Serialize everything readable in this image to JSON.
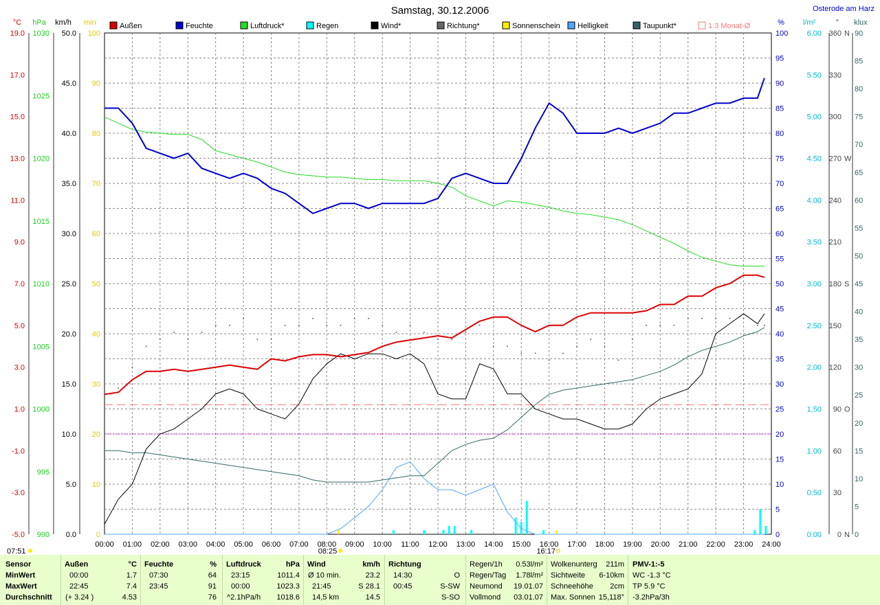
{
  "title": "Samstag, 30.12.2006",
  "location": "Osterode am Harz",
  "colors": {
    "aussen": "#dd0000",
    "feuchte": "#0000cc",
    "luftdruck": "#22dd22",
    "regen": "#00ffff",
    "wind": "#000000",
    "richtung": "#666666",
    "sonnenschein": "#ffee00",
    "helligkeit": "#4ea6ff",
    "taupunkt": "#336666",
    "monat": "#ff7777"
  },
  "legend": [
    "Außen",
    "Feuchte",
    "Luftdruck*",
    "Regen",
    "Wind*",
    "Richtung*",
    "Sonnenschein",
    "Helligkeit",
    "Taupunkt*",
    "1.3 Monat-Ø"
  ],
  "axis_units": {
    "c": "°C",
    "hpa": "hPa",
    "kmh": "km/h",
    "min": "min",
    "pct": "%",
    "lm2": "l/m²",
    "deg": "°",
    "klux": "klux"
  },
  "x_ticks": [
    "00:00",
    "01:00",
    "02:00",
    "03:00",
    "04:00",
    "05:00",
    "06:00",
    "07:00",
    "08:00",
    "09:00",
    "10:00",
    "11:00",
    "12:00",
    "13:00",
    "14:00",
    "15:00",
    "16:00",
    "17:00",
    "18:00",
    "19:00",
    "20:00",
    "21:00",
    "22:00",
    "23:00",
    "24:00"
  ],
  "axes": {
    "temp": [
      "-5.0",
      "-3.0",
      "-1.0",
      "1.0",
      "3.0",
      "5.0",
      "7.0",
      "9.0",
      "11.0",
      "13.0",
      "15.0",
      "17.0",
      "19.0"
    ],
    "hpa": [
      "990",
      "995",
      "1000",
      "1005",
      "1010",
      "1015",
      "1020",
      "1025",
      "1030"
    ],
    "kmh": [
      "0.0",
      "5.0",
      "10.0",
      "15.0",
      "20.0",
      "25.0",
      "30.0",
      "35.0",
      "40.0",
      "45.0",
      "50.0"
    ],
    "min": [
      "0",
      "10",
      "20",
      "30",
      "40",
      "50",
      "60",
      "70",
      "80",
      "90",
      "100"
    ],
    "pct": [
      "0",
      "5",
      "10",
      "15",
      "20",
      "25",
      "30",
      "35",
      "40",
      "45",
      "50",
      "55",
      "60",
      "65",
      "70",
      "75",
      "80",
      "85",
      "90",
      "95",
      "100"
    ],
    "lm2": [
      "0.00",
      "0.50",
      "1.00",
      "1.50",
      "2.00",
      "2.50",
      "3.00",
      "3.50",
      "4.00",
      "4.50",
      "5.00",
      "5.50",
      "6.00"
    ],
    "deg": [
      "0",
      "30",
      "60",
      "90",
      "120",
      "150",
      "180",
      "210",
      "240",
      "270",
      "300",
      "330",
      "360"
    ],
    "dir": [
      "N",
      "O",
      "S",
      "W",
      "N"
    ],
    "klux": [
      "0",
      "5",
      "10",
      "15",
      "20",
      "25",
      "30",
      "35",
      "40",
      "45",
      "50",
      "55",
      "60",
      "65",
      "70",
      "75",
      "80",
      "85",
      "90"
    ]
  },
  "sun": {
    "sunrise": "07:51",
    "noon": "08:25",
    "sunset": "16:17"
  },
  "chart_data": {
    "type": "line",
    "title": "Samstag, 30.12.2006",
    "x_hours": [
      0,
      0.5,
      1,
      1.5,
      2,
      2.5,
      3,
      3.5,
      4,
      4.5,
      5,
      5.5,
      6,
      6.5,
      7,
      7.5,
      8,
      8.5,
      9,
      9.5,
      10,
      10.5,
      11,
      11.5,
      12,
      12.5,
      13,
      13.5,
      14,
      14.5,
      15,
      15.5,
      16,
      16.5,
      17,
      17.5,
      18,
      18.5,
      19,
      19.5,
      20,
      20.5,
      21,
      21.5,
      22,
      22.5,
      23,
      23.5,
      23.75
    ],
    "series": [
      {
        "name": "Außen",
        "unit": "°C",
        "values": [
          1.7,
          1.8,
          2.4,
          2.8,
          2.8,
          2.9,
          2.8,
          2.9,
          3.0,
          3.1,
          3.0,
          2.9,
          3.4,
          3.3,
          3.5,
          3.6,
          3.6,
          3.5,
          3.6,
          3.7,
          4.0,
          4.2,
          4.3,
          4.4,
          4.5,
          4.4,
          4.8,
          5.2,
          5.4,
          5.4,
          5.0,
          4.7,
          5.0,
          5.0,
          5.4,
          5.6,
          5.6,
          5.6,
          5.6,
          5.7,
          6.0,
          6.0,
          6.4,
          6.4,
          6.8,
          7.0,
          7.4,
          7.4,
          7.3
        ]
      },
      {
        "name": "Feuchte",
        "unit": "%",
        "values": [
          85,
          85,
          82,
          77,
          76,
          75,
          76,
          73,
          72,
          71,
          72,
          71,
          69,
          68,
          66,
          64,
          65,
          66,
          66,
          65,
          66,
          66,
          66,
          66,
          67,
          71,
          72,
          71,
          70,
          70,
          75,
          81,
          86,
          84,
          80,
          80,
          80,
          81,
          80,
          81,
          82,
          84,
          84,
          85,
          86,
          86,
          87,
          87,
          91
        ]
      },
      {
        "name": "Luftdruck*",
        "unit": "hPa",
        "values": [
          1023.3,
          1022.8,
          1022.3,
          1022.1,
          1022.0,
          1021.9,
          1021.9,
          1021.5,
          1020.6,
          1020.3,
          1020.0,
          1019.7,
          1019.3,
          1018.9,
          1018.7,
          1018.6,
          1018.5,
          1018.5,
          1018.4,
          1018.3,
          1018.3,
          1018.2,
          1018.2,
          1018.2,
          1018.0,
          1017.7,
          1017.0,
          1016.6,
          1016.2,
          1016.6,
          1016.5,
          1016.3,
          1016.1,
          1015.8,
          1015.6,
          1015.5,
          1015.3,
          1015.1,
          1014.7,
          1014.2,
          1013.7,
          1013.2,
          1012.6,
          1012.1,
          1011.8,
          1011.5,
          1011.4,
          1011.4,
          1011.4
        ]
      },
      {
        "name": "Wind*",
        "unit": "km/h",
        "values": [
          1.0,
          3.5,
          5.0,
          8.5,
          10.0,
          10.5,
          11.5,
          12.5,
          14.0,
          14.5,
          14.0,
          12.5,
          12.0,
          11.5,
          13.0,
          15.5,
          17.0,
          18.0,
          17.5,
          18.0,
          18.0,
          17.5,
          18.0,
          17.0,
          14.0,
          13.5,
          13.5,
          17.0,
          16.5,
          14.0,
          14.0,
          12.5,
          12.0,
          11.5,
          11.5,
          11.0,
          10.5,
          10.5,
          11.0,
          12.5,
          13.5,
          14.0,
          14.5,
          16.0,
          20.0,
          21.0,
          22.0,
          21.0,
          22.0
        ]
      },
      {
        "name": "Taupunkt*",
        "unit": "°C",
        "values": [
          -1.0,
          -1.0,
          -1.1,
          -1.1,
          -1.2,
          -1.3,
          -1.4,
          -1.5,
          -1.6,
          -1.7,
          -1.8,
          -1.9,
          -2.0,
          -2.1,
          -2.2,
          -2.4,
          -2.5,
          -2.5,
          -2.5,
          -2.5,
          -2.4,
          -2.3,
          -2.2,
          -2.2,
          -1.6,
          -1.0,
          -0.7,
          -0.5,
          -0.4,
          0.0,
          0.6,
          1.2,
          1.7,
          1.9,
          2.0,
          2.1,
          2.2,
          2.3,
          2.4,
          2.6,
          2.8,
          3.1,
          3.5,
          3.8,
          4.0,
          4.2,
          4.5,
          4.7,
          4.9
        ]
      },
      {
        "name": "Helligkeit",
        "unit": "klux",
        "values": [
          0,
          0,
          0,
          0,
          0,
          0,
          0,
          0,
          0,
          0,
          0,
          0,
          0,
          0,
          0,
          0,
          0,
          1,
          3,
          5,
          8,
          12,
          13,
          10,
          8,
          8,
          7,
          8,
          9,
          4,
          1,
          0,
          0,
          0,
          0,
          0,
          0,
          0,
          0,
          0,
          0,
          0,
          0,
          0,
          0,
          0,
          0,
          0,
          0
        ]
      },
      {
        "name": "Richtung*",
        "unit": "°",
        "values": [
          60,
          105,
          120,
          135,
          140,
          145,
          140,
          145,
          150,
          150,
          155,
          140,
          140,
          150,
          150,
          155,
          150,
          150,
          155,
          155,
          150,
          145,
          150,
          145,
          140,
          140,
          145,
          150,
          135,
          135,
          130,
          130,
          125,
          130,
          135,
          140,
          135,
          125,
          140,
          150,
          150,
          150,
          155,
          155,
          155,
          155,
          155,
          150,
          150
        ]
      },
      {
        "name": "Regen",
        "unit": "l/m²",
        "bars": [
          [
            10.4,
            0.05
          ],
          [
            11.5,
            0.05
          ],
          [
            12.2,
            0.05
          ],
          [
            12.4,
            0.1
          ],
          [
            12.6,
            0.1
          ],
          [
            13.2,
            0.05
          ],
          [
            14.8,
            0.2
          ],
          [
            15.0,
            0.15
          ],
          [
            15.2,
            0.4
          ],
          [
            15.8,
            0.05
          ],
          [
            23.4,
            0.05
          ],
          [
            23.6,
            0.3
          ],
          [
            23.8,
            0.1
          ]
        ]
      },
      {
        "name": "1.3 Monat-Ø",
        "unit": "°C",
        "values": [
          1.2
        ]
      }
    ]
  },
  "table": {
    "rows": [
      "Sensor",
      "MinWert",
      "MaxWert",
      "Durchschnitt"
    ],
    "aussen": {
      "head": "Außen",
      "unit": "°C",
      "min_t": "00:00",
      "min_v": "1.7",
      "max_t": "22:45",
      "max_v": "7.4",
      "avg_t": "(+ 3.24 )",
      "avg_v": "4.53"
    },
    "feuchte": {
      "head": "Feuchte",
      "unit": "%",
      "min_t": "07:30",
      "min_v": "64",
      "max_t": "23:45",
      "max_v": "91",
      "avg_v": "76"
    },
    "luftdruck": {
      "head": "Luftdruck",
      "unit": "hPa",
      "min_t": "23:15",
      "min_v": "1011.4",
      "max_t": "00:00",
      "max_v": "1023.3",
      "avg_t": "^2.1hPa/h",
      "avg_v": "1018.6"
    },
    "wind": {
      "head": "Wind",
      "unit": "km/h",
      "min_t": "Ø 10 min.",
      "min_v": "23.2",
      "max_t": "21:45",
      "max_v": "S 28.1",
      "avg_t": "14,5 km",
      "avg_v": "14.5"
    },
    "richtung": {
      "head": "Richtung",
      "min_t": "14:30",
      "min_v": "O",
      "max_t": "00:45",
      "max_v": "S-SW",
      "avg_v": "S-SO"
    },
    "regen": [
      [
        "Regen/1h",
        "0.53l/m²"
      ],
      [
        "Regen/Tag",
        "1.78l/m²"
      ],
      [
        "Neumond",
        "19.01.07"
      ],
      [
        "Vollmond",
        "03.01.07"
      ]
    ],
    "wolken": [
      [
        "Wolkenunterg",
        "211m"
      ],
      [
        "Sichtweite",
        "6-10km"
      ],
      [
        "Schneehöhe",
        "2cm"
      ],
      [
        "Max. Sonnen",
        "15,118°"
      ]
    ],
    "pmv": [
      "PMV-1:-5",
      "WC -1.3 °C",
      "TP 5.9 °C",
      "-3.2hPa/3h"
    ]
  }
}
